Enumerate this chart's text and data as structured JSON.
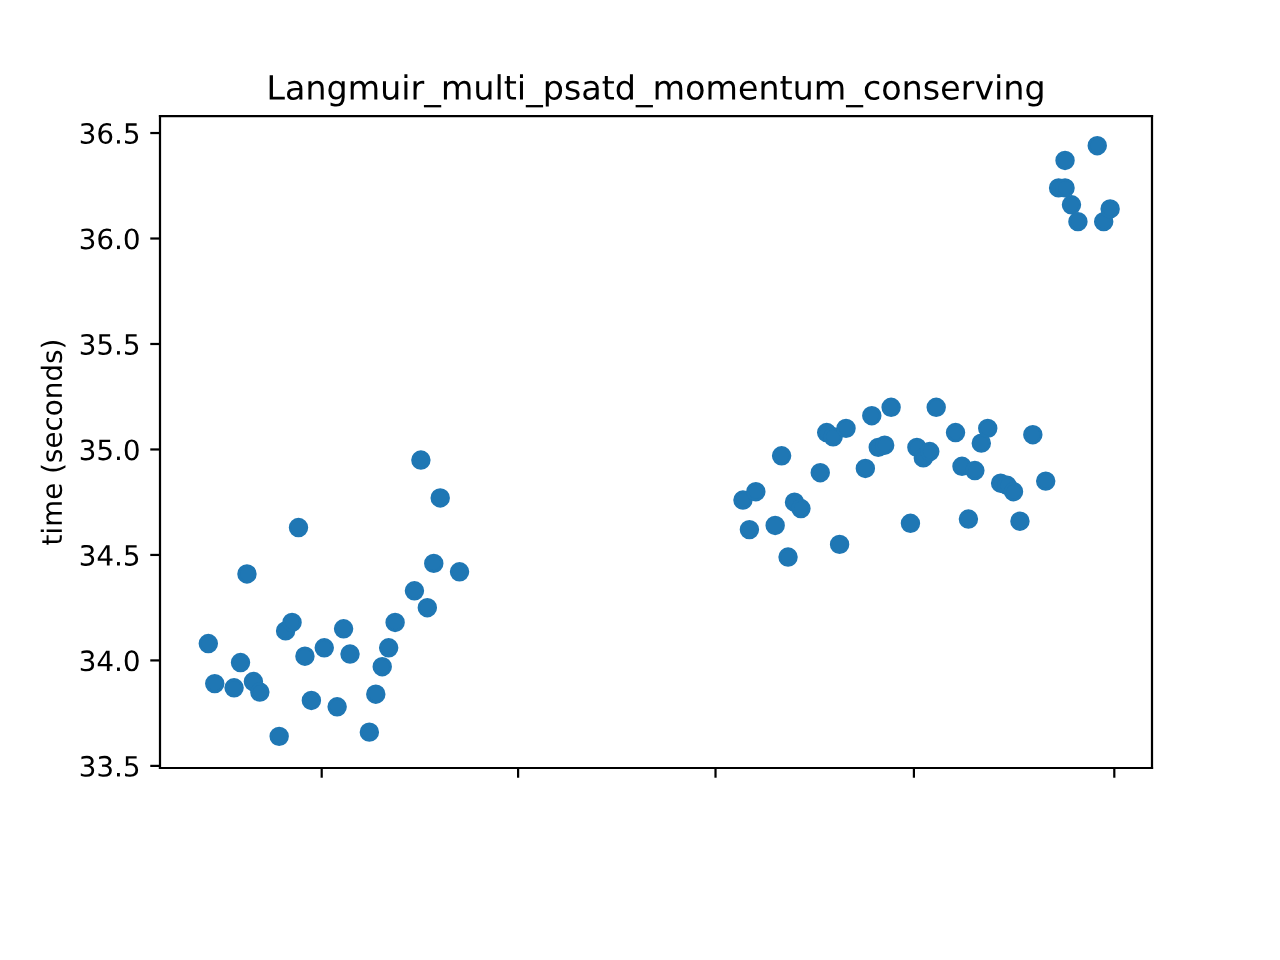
{
  "chart_data": {
    "type": "scatter",
    "title": "Langmuir_multi_psatd_momentum_conserving",
    "ylabel": "time (seconds)",
    "categories": [
      null,
      null,
      null,
      null,
      null,
      null,
      null,
      null,
      null,
      null,
      null,
      null,
      null,
      null,
      null,
      null,
      null,
      null,
      null,
      null,
      null,
      null,
      null,
      null,
      null,
      null,
      null,
      null,
      null,
      null,
      null,
      null,
      null,
      null,
      null,
      null,
      null,
      null,
      null,
      null,
      null,
      null,
      null,
      null,
      null,
      null,
      null,
      null,
      null,
      null,
      null,
      null,
      null,
      null,
      null,
      null,
      null,
      null,
      null,
      null,
      null,
      null,
      null,
      null,
      null,
      null,
      null,
      null,
      null,
      null,
      null,
      null,
      null,
      null,
      null,
      null,
      null,
      null,
      null,
      null,
      null,
      null,
      null,
      null,
      null,
      null,
      null,
      null,
      null,
      null,
      null,
      null,
      null,
      null,
      null,
      null,
      null,
      null,
      null,
      null,
      null,
      null,
      null,
      null,
      null,
      null,
      null,
      null,
      null,
      null,
      null,
      null,
      null,
      null,
      null,
      null,
      null,
      null,
      null,
      null,
      null,
      null,
      null,
      null,
      null,
      null,
      null,
      null,
      null,
      null,
      null,
      null,
      null,
      null,
      null,
      null,
      null,
      null,
      null,
      null,
      null,
      null,
      null,
      null,
      null,
      null,
      null,
      null,
      null,
      null,
      null,
      null,
      null,
      null
    ],
    "series": [
      {
        "color": "#1f77b4",
        "values": [
          null,
          null,
          null,
          null,
          null,
          null,
          null,
          34.08,
          33.89,
          null,
          null,
          33.87,
          33.99,
          34.41,
          33.9,
          33.85,
          null,
          null,
          33.64,
          34.14,
          34.18,
          34.63,
          34.02,
          33.81,
          null,
          34.06,
          null,
          33.78,
          34.15,
          34.03,
          null,
          null,
          33.66,
          33.84,
          33.97,
          34.06,
          34.18,
          null,
          null,
          34.33,
          34.95,
          34.25,
          34.46,
          34.77,
          null,
          null,
          34.42,
          null,
          null,
          null,
          null,
          null,
          null,
          null,
          null,
          null,
          null,
          null,
          null,
          null,
          null,
          null,
          null,
          null,
          null,
          null,
          null,
          null,
          null,
          null,
          null,
          null,
          null,
          null,
          null,
          null,
          null,
          null,
          null,
          null,
          null,
          null,
          null,
          null,
          null,
          null,
          null,
          null,
          null,
          null,
          34.76,
          34.62,
          34.8,
          null,
          null,
          34.64,
          34.97,
          34.49,
          34.75,
          34.72,
          null,
          null,
          34.89,
          35.08,
          35.06,
          34.55,
          35.1,
          null,
          null,
          34.91,
          35.16,
          35.01,
          35.02,
          35.2,
          null,
          null,
          34.65,
          35.01,
          34.96,
          34.99,
          35.2,
          null,
          null,
          35.08,
          34.92,
          34.67,
          34.9,
          35.03,
          35.1,
          null,
          34.84,
          34.83,
          34.8,
          34.66,
          null,
          35.07,
          null,
          34.85,
          null,
          36.24,
          36.37,
          36.16,
          36.08,
          null,
          null,
          36.44,
          36.08,
          36.14,
          null,
          null,
          null,
          null,
          null,
          null
        ]
      },
      {
        "color": "#1f77b4",
        "values": [
          null,
          null,
          null,
          null,
          null,
          null,
          null,
          null,
          null,
          null,
          null,
          null,
          null,
          null,
          null,
          null,
          null,
          null,
          null,
          null,
          null,
          null,
          null,
          null,
          null,
          null,
          null,
          null,
          null,
          null,
          null,
          null,
          null,
          null,
          null,
          null,
          null,
          null,
          null,
          null,
          null,
          null,
          null,
          null,
          null,
          null,
          null,
          null,
          null,
          null,
          null,
          null,
          null,
          null,
          null,
          null,
          null,
          null,
          null,
          null,
          null,
          null,
          null,
          null,
          null,
          null,
          null,
          null,
          null,
          null,
          null,
          null,
          null,
          null,
          null,
          null,
          null,
          null,
          null,
          null,
          null,
          null,
          null,
          null,
          null,
          null,
          null,
          null,
          null,
          null,
          null,
          null,
          null,
          null,
          null,
          null,
          null,
          null,
          null,
          null,
          null,
          null,
          null,
          null,
          null,
          null,
          null,
          null,
          null,
          null,
          null,
          null,
          null,
          null,
          null,
          null,
          null,
          null,
          null,
          null,
          null,
          null,
          null,
          null,
          null,
          null,
          null,
          null,
          null,
          null,
          null,
          null,
          null,
          null,
          null,
          null,
          null,
          null,
          null,
          null,
          36.24,
          null,
          null,
          null,
          null,
          null,
          null,
          null,
          null,
          null,
          null,
          null,
          null,
          null
        ]
      }
    ],
    "ylim": [
      33.49,
      36.58
    ],
    "yticks": [
      33.5,
      {
        "value": 34,
        "label": "34.0"
      },
      34.5,
      {
        "value": 35,
        "label": "35.0"
      },
      35.5,
      {
        "value": 36,
        "label": "36.0"
      },
      36.5
    ],
    "tick_labels": "y",
    "marker": "circle"
  }
}
